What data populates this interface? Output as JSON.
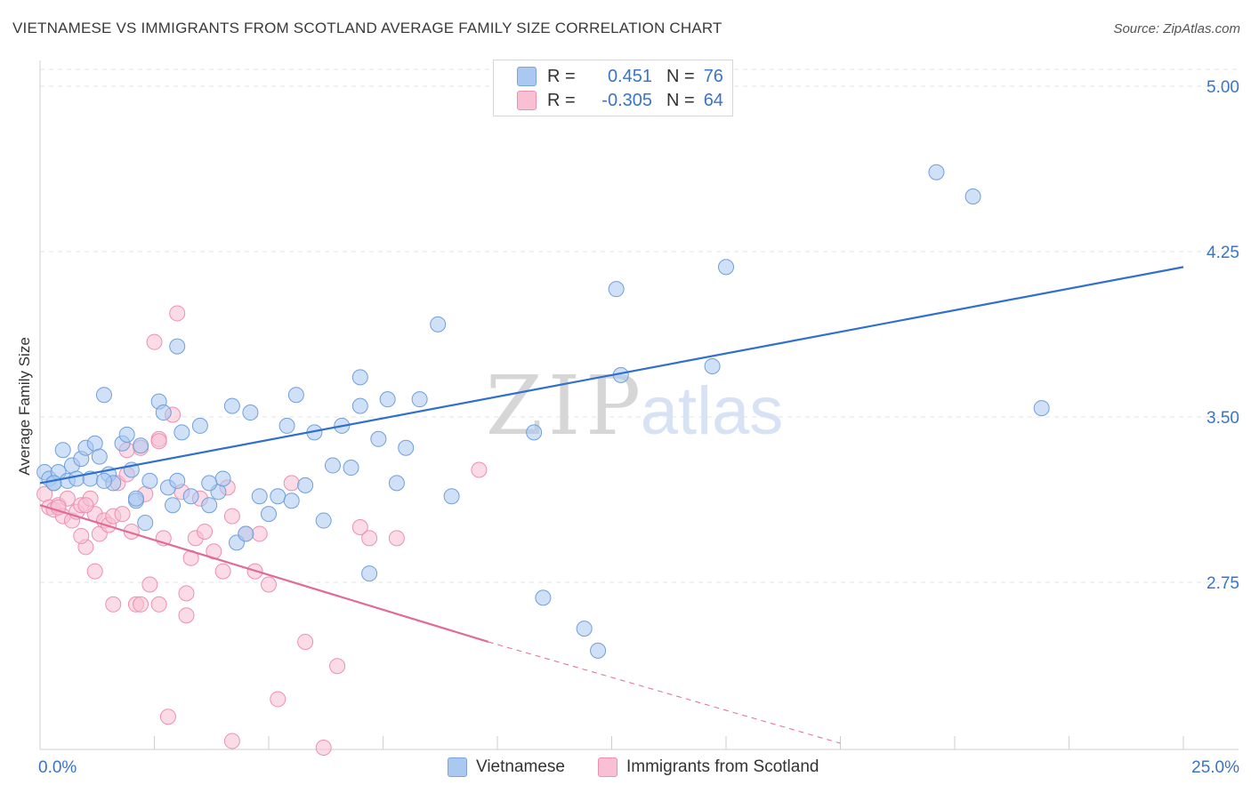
{
  "title": "VIETNAMESE VS IMMIGRANTS FROM SCOTLAND AVERAGE FAMILY SIZE CORRELATION CHART",
  "source": "Source: ZipAtlas.com",
  "watermark": {
    "zip": "ZIP",
    "atlas": "atlas"
  },
  "legend": {
    "rows": [
      {
        "r_label": "R =",
        "r_value": "0.451",
        "n_label": "N =",
        "n_value": "76",
        "color": "#aac8f0",
        "border": "#7aa6e0"
      },
      {
        "r_label": "R =",
        "r_value": "-0.305",
        "n_label": "N =",
        "n_value": "64",
        "color": "#f8c0d2",
        "border": "#ee8fb0"
      }
    ]
  },
  "bottom_legend": {
    "vietnamese": "Vietnamese",
    "scotland": "Immigrants from Scotland"
  },
  "chart_data": {
    "type": "scatter",
    "title": "VIETNAMESE VS IMMIGRANTS FROM SCOTLAND AVERAGE FAMILY SIZE CORRELATION CHART",
    "xlabel": "",
    "ylabel": "Average Family Size",
    "xlim": [
      0,
      25
    ],
    "ylim": [
      2.0,
      5.2
    ],
    "x_tick_labels": [
      "0.0%",
      "25.0%"
    ],
    "y_ticks": [
      2.75,
      3.5,
      4.25,
      5.0
    ],
    "y_tick_labels": [
      "2.75",
      "3.50",
      "4.25",
      "5.00"
    ],
    "grid": true,
    "legend_position": "top-center",
    "series": [
      {
        "name": "Vietnamese",
        "color": "#aac8f0",
        "stroke": "#6f9fdc",
        "line_color": "#2f6fcf",
        "trend": {
          "x": [
            0.0,
            25.0
          ],
          "y": [
            3.2,
            4.18
          ]
        },
        "points": [
          [
            0.1,
            3.25
          ],
          [
            0.2,
            3.22
          ],
          [
            0.3,
            3.2
          ],
          [
            0.4,
            3.25
          ],
          [
            0.5,
            3.35
          ],
          [
            0.6,
            3.21
          ],
          [
            0.7,
            3.28
          ],
          [
            0.8,
            3.22
          ],
          [
            0.9,
            3.31
          ],
          [
            1.0,
            3.36
          ],
          [
            1.1,
            3.22
          ],
          [
            1.2,
            3.38
          ],
          [
            1.3,
            3.32
          ],
          [
            1.4,
            3.6
          ],
          [
            1.5,
            3.24
          ],
          [
            1.6,
            3.2
          ],
          [
            1.8,
            3.38
          ],
          [
            1.9,
            3.42
          ],
          [
            2.0,
            3.26
          ],
          [
            2.1,
            3.12
          ],
          [
            2.2,
            3.37
          ],
          [
            2.3,
            3.02
          ],
          [
            2.4,
            3.21
          ],
          [
            2.6,
            3.57
          ],
          [
            2.7,
            3.52
          ],
          [
            2.8,
            3.18
          ],
          [
            2.9,
            3.1
          ],
          [
            3.1,
            3.43
          ],
          [
            3.0,
            3.21
          ],
          [
            3.3,
            3.14
          ],
          [
            3.5,
            3.46
          ],
          [
            3.7,
            3.1
          ],
          [
            3.9,
            3.16
          ],
          [
            4.0,
            3.22
          ],
          [
            4.2,
            3.55
          ],
          [
            4.3,
            2.93
          ],
          [
            4.5,
            2.97
          ],
          [
            4.6,
            3.52
          ],
          [
            4.8,
            3.14
          ],
          [
            5.0,
            3.06
          ],
          [
            5.2,
            3.14
          ],
          [
            5.4,
            3.46
          ],
          [
            5.6,
            3.6
          ],
          [
            5.8,
            3.19
          ],
          [
            6.0,
            3.43
          ],
          [
            6.2,
            3.03
          ],
          [
            6.4,
            3.28
          ],
          [
            6.6,
            3.46
          ],
          [
            6.8,
            3.27
          ],
          [
            7.0,
            3.55
          ],
          [
            7.2,
            2.79
          ],
          [
            7.4,
            3.4
          ],
          [
            7.6,
            3.58
          ],
          [
            7.8,
            3.2
          ],
          [
            8.0,
            3.36
          ],
          [
            8.3,
            3.58
          ],
          [
            8.7,
            3.92
          ],
          [
            9.0,
            3.14
          ],
          [
            3.0,
            3.82
          ],
          [
            7.0,
            3.68
          ],
          [
            10.8,
            3.43
          ],
          [
            11.0,
            2.68
          ],
          [
            11.9,
            2.54
          ],
          [
            12.2,
            2.44
          ],
          [
            12.6,
            4.08
          ],
          [
            12.7,
            3.69
          ],
          [
            14.7,
            3.73
          ],
          [
            15.0,
            4.18
          ],
          [
            19.6,
            4.61
          ],
          [
            20.4,
            4.5
          ],
          [
            21.9,
            3.54
          ],
          [
            0.3,
            3.2
          ],
          [
            1.4,
            3.21
          ],
          [
            2.1,
            3.13
          ],
          [
            3.7,
            3.2
          ],
          [
            5.5,
            3.12
          ]
        ]
      },
      {
        "name": "Immigrants from Scotland",
        "color": "#f8c0d2",
        "stroke": "#ee8fb0",
        "line_color": "#e06b98",
        "trend": {
          "x": [
            0.0,
            9.8
          ],
          "y": [
            3.1,
            2.48
          ]
        },
        "trend_dashed": {
          "x": [
            9.8,
            17.5
          ],
          "y": [
            2.48,
            2.02
          ]
        },
        "points": [
          [
            0.1,
            3.15
          ],
          [
            0.2,
            3.09
          ],
          [
            0.3,
            3.08
          ],
          [
            0.4,
            3.1
          ],
          [
            0.5,
            3.05
          ],
          [
            0.6,
            3.13
          ],
          [
            0.7,
            3.03
          ],
          [
            0.8,
            3.07
          ],
          [
            0.9,
            3.1
          ],
          [
            1.0,
            2.91
          ],
          [
            1.1,
            3.13
          ],
          [
            1.2,
            3.06
          ],
          [
            1.3,
            2.97
          ],
          [
            1.4,
            3.03
          ],
          [
            1.5,
            3.01
          ],
          [
            1.6,
            3.05
          ],
          [
            1.7,
            3.2
          ],
          [
            1.8,
            3.06
          ],
          [
            1.9,
            3.24
          ],
          [
            2.0,
            2.98
          ],
          [
            2.1,
            2.65
          ],
          [
            2.2,
            3.36
          ],
          [
            2.3,
            3.15
          ],
          [
            2.4,
            2.74
          ],
          [
            2.5,
            3.84
          ],
          [
            2.6,
            3.4
          ],
          [
            2.7,
            2.95
          ],
          [
            2.8,
            2.14
          ],
          [
            2.9,
            3.51
          ],
          [
            3.0,
            3.97
          ],
          [
            3.1,
            3.16
          ],
          [
            3.2,
            2.6
          ],
          [
            3.3,
            2.86
          ],
          [
            3.4,
            2.95
          ],
          [
            3.6,
            2.98
          ],
          [
            3.8,
            2.89
          ],
          [
            4.0,
            2.8
          ],
          [
            4.1,
            3.18
          ],
          [
            4.2,
            2.03
          ],
          [
            4.5,
            2.97
          ],
          [
            4.7,
            2.8
          ],
          [
            4.8,
            2.97
          ],
          [
            5.0,
            2.74
          ],
          [
            5.2,
            2.22
          ],
          [
            5.8,
            2.48
          ],
          [
            6.2,
            2.0
          ],
          [
            6.5,
            2.37
          ],
          [
            7.0,
            3.0
          ],
          [
            7.2,
            2.95
          ],
          [
            7.8,
            2.95
          ],
          [
            9.6,
            3.26
          ],
          [
            1.2,
            2.8
          ],
          [
            1.9,
            3.35
          ],
          [
            2.6,
            3.39
          ],
          [
            3.2,
            2.7
          ],
          [
            1.6,
            2.65
          ],
          [
            0.4,
            3.09
          ],
          [
            0.9,
            2.96
          ],
          [
            2.2,
            2.65
          ],
          [
            5.5,
            3.2
          ],
          [
            1.0,
            3.1
          ],
          [
            3.5,
            3.13
          ],
          [
            2.6,
            2.65
          ],
          [
            4.2,
            3.05
          ]
        ]
      }
    ]
  }
}
